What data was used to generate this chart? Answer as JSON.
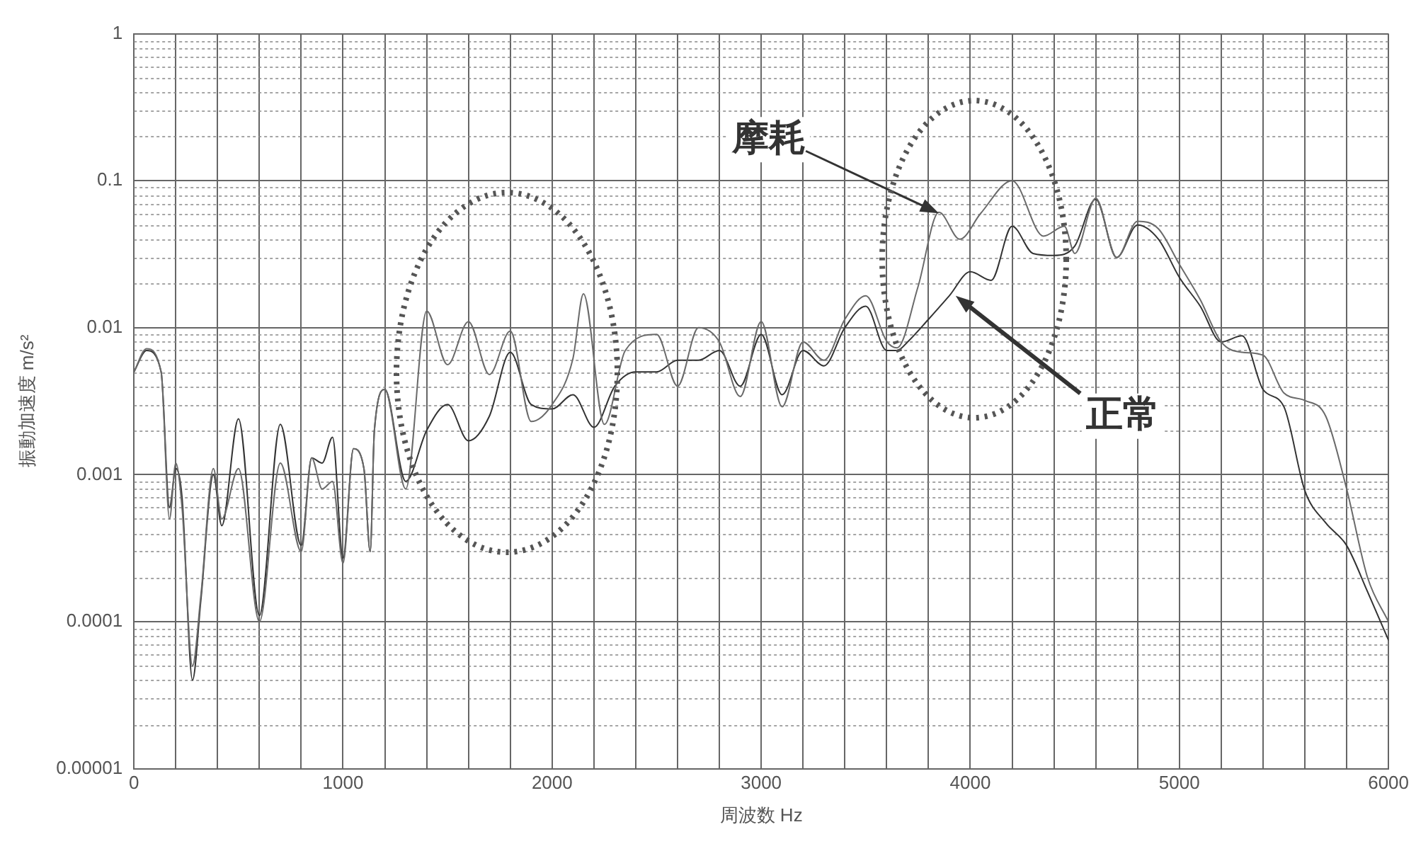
{
  "chart_data": {
    "type": "line",
    "xlabel": "周波数 Hz",
    "ylabel": "振動加速度 m/s²",
    "log": "y",
    "grid": true,
    "marker": "none",
    "line_style": "solid",
    "xlim": [
      0,
      6000
    ],
    "ylim": [
      1e-05,
      1
    ],
    "xticks": [
      0,
      {
        "value": 200,
        "label": null
      },
      {
        "value": 400,
        "label": null
      },
      {
        "value": 600,
        "label": null
      },
      {
        "value": 800,
        "label": null
      },
      1000,
      {
        "value": 1200,
        "label": null
      },
      {
        "value": 1400,
        "label": null
      },
      {
        "value": 1600,
        "label": null
      },
      {
        "value": 1800,
        "label": null
      },
      2000,
      {
        "value": 2200,
        "label": null
      },
      {
        "value": 2400,
        "label": null
      },
      {
        "value": 2600,
        "label": null
      },
      {
        "value": 2800,
        "label": null
      },
      3000,
      {
        "value": 3200,
        "label": null
      },
      {
        "value": 3400,
        "label": null
      },
      {
        "value": 3600,
        "label": null
      },
      {
        "value": 3800,
        "label": null
      },
      4000,
      {
        "value": 4200,
        "label": null
      },
      {
        "value": 4400,
        "label": null
      },
      {
        "value": 4600,
        "label": null
      },
      {
        "value": 4800,
        "label": null
      },
      5000,
      {
        "value": 5200,
        "label": null
      },
      {
        "value": 5400,
        "label": null
      },
      {
        "value": 5600,
        "label": null
      },
      {
        "value": 5800,
        "label": null
      },
      6000
    ],
    "yticks": [
      {
        "value": 1e-05,
        "label": "0.00001"
      },
      {
        "value": 2e-05,
        "label": null
      },
      {
        "value": 3e-05,
        "label": null
      },
      {
        "value": 4e-05,
        "label": null
      },
      {
        "value": 5e-05,
        "label": null
      },
      {
        "value": 6e-05,
        "label": null
      },
      {
        "value": 7e-05,
        "label": null
      },
      {
        "value": 8e-05,
        "label": null
      },
      {
        "value": 9e-05,
        "label": null
      },
      0.0001,
      {
        "value": 0.0002,
        "label": null
      },
      {
        "value": 0.0003,
        "label": null
      },
      {
        "value": 0.0004,
        "label": null
      },
      {
        "value": 0.0005,
        "label": null
      },
      {
        "value": 0.0006,
        "label": null
      },
      {
        "value": 0.0007,
        "label": null
      },
      {
        "value": 0.0008,
        "label": null
      },
      {
        "value": 0.0009,
        "label": null
      },
      0.001,
      {
        "value": 0.002,
        "label": null
      },
      {
        "value": 0.003,
        "label": null
      },
      {
        "value": 0.004,
        "label": null
      },
      {
        "value": 0.005,
        "label": null
      },
      {
        "value": 0.006,
        "label": null
      },
      {
        "value": 0.007,
        "label": null
      },
      {
        "value": 0.008,
        "label": null
      },
      {
        "value": 0.009,
        "label": null
      },
      0.01,
      {
        "value": 0.02,
        "label": null
      },
      {
        "value": 0.03,
        "label": null
      },
      {
        "value": 0.04,
        "label": null
      },
      {
        "value": 0.05,
        "label": null
      },
      {
        "value": 0.06,
        "label": null
      },
      {
        "value": 0.07,
        "label": null
      },
      {
        "value": 0.08,
        "label": null
      },
      {
        "value": 0.09,
        "label": null
      },
      0.1,
      {
        "value": 0.2,
        "label": null
      },
      {
        "value": 0.3,
        "label": null
      },
      {
        "value": 0.4,
        "label": null
      },
      {
        "value": 0.5,
        "label": null
      },
      {
        "value": 0.6,
        "label": null
      },
      {
        "value": 0.7,
        "label": null
      },
      {
        "value": 0.8,
        "label": null
      },
      {
        "value": 0.9,
        "label": null
      },
      1
    ],
    "annotations": [
      {
        "text": "摩耗",
        "x": 3850,
        "y": 0.06
      },
      {
        "text": "正常",
        "x": 3930,
        "y": 0.0165
      }
    ],
    "series": [
      {
        "color": "#6a6a6a",
        "x": [
          0,
          60,
          130,
          170,
          200,
          230,
          280,
          320,
          380,
          420,
          500,
          600,
          700,
          800,
          850,
          900,
          950,
          1000,
          1050,
          1100,
          1130,
          1150,
          1200,
          1300,
          1400,
          1500,
          1600,
          1700,
          1800,
          1900,
          2000,
          2100,
          2150,
          2250,
          2350,
          2500,
          2600,
          2700,
          2800,
          2900,
          3000,
          3100,
          3200,
          3300,
          3400,
          3500,
          3600,
          3650,
          3750,
          3850,
          3950,
          4050,
          4200,
          4350,
          4450,
          4500,
          4600,
          4700,
          4800,
          4900,
          5000,
          5100,
          5200,
          5300,
          5400,
          5500,
          5600,
          5700,
          5800,
          5900,
          6000
        ],
        "values": [
          0.005,
          0.0072,
          0.005,
          0.0005,
          0.0012,
          0.0006,
          5e-05,
          0.00015,
          0.0011,
          0.0005,
          0.0011,
          0.0001,
          0.0012,
          0.0003,
          0.0013,
          0.0008,
          0.0009,
          0.00025,
          0.0015,
          0.0011,
          0.0003,
          0.002,
          0.0038,
          0.0008,
          0.013,
          0.0056,
          0.011,
          0.0048,
          0.0095,
          0.0023,
          0.003,
          0.0062,
          0.017,
          0.0022,
          0.007,
          0.009,
          0.004,
          0.01,
          0.008,
          0.0034,
          0.011,
          0.0029,
          0.008,
          0.006,
          0.0114,
          0.0165,
          0.0081,
          0.0073,
          0.019,
          0.061,
          0.04,
          0.06,
          0.1,
          0.042,
          0.049,
          0.032,
          0.076,
          0.03,
          0.053,
          0.047,
          0.027,
          0.0155,
          0.008,
          0.0068,
          0.0065,
          0.0036,
          0.0032,
          0.0025,
          0.0008,
          0.0002,
          0.0001
        ]
      },
      {
        "color": "#333333",
        "x": [
          0,
          60,
          130,
          170,
          200,
          230,
          280,
          320,
          380,
          420,
          500,
          600,
          700,
          800,
          850,
          900,
          950,
          1000,
          1050,
          1100,
          1130,
          1150,
          1200,
          1300,
          1400,
          1500,
          1600,
          1700,
          1800,
          1900,
          2000,
          2100,
          2200,
          2300,
          2400,
          2500,
          2600,
          2700,
          2800,
          2900,
          3000,
          3100,
          3200,
          3300,
          3400,
          3500,
          3600,
          3650,
          3700,
          3800,
          3900,
          4000,
          4100,
          4200,
          4300,
          4400,
          4500,
          4600,
          4700,
          4800,
          4900,
          5000,
          5100,
          5200,
          5300,
          5400,
          5500,
          5600,
          5700,
          5800,
          5900,
          6000
        ],
        "values": [
          0.005,
          0.007,
          0.005,
          0.0006,
          0.0011,
          0.0007,
          4e-05,
          0.00014,
          0.001,
          0.00045,
          0.0024,
          0.00011,
          0.0022,
          0.00033,
          0.0013,
          0.0012,
          0.0018,
          0.00027,
          0.0015,
          0.0011,
          0.0003,
          0.002,
          0.0038,
          0.0009,
          0.002,
          0.003,
          0.0017,
          0.0025,
          0.0068,
          0.003,
          0.0028,
          0.0035,
          0.0021,
          0.004,
          0.005,
          0.005,
          0.006,
          0.006,
          0.007,
          0.004,
          0.009,
          0.0035,
          0.007,
          0.0055,
          0.01,
          0.014,
          0.007,
          0.007,
          0.008,
          0.0114,
          0.0165,
          0.024,
          0.021,
          0.049,
          0.032,
          0.031,
          0.036,
          0.075,
          0.03,
          0.05,
          0.04,
          0.022,
          0.014,
          0.008,
          0.0088,
          0.0038,
          0.0029,
          0.00078,
          0.00047,
          0.00033,
          0.00016,
          7.5e-05
        ]
      }
    ]
  }
}
